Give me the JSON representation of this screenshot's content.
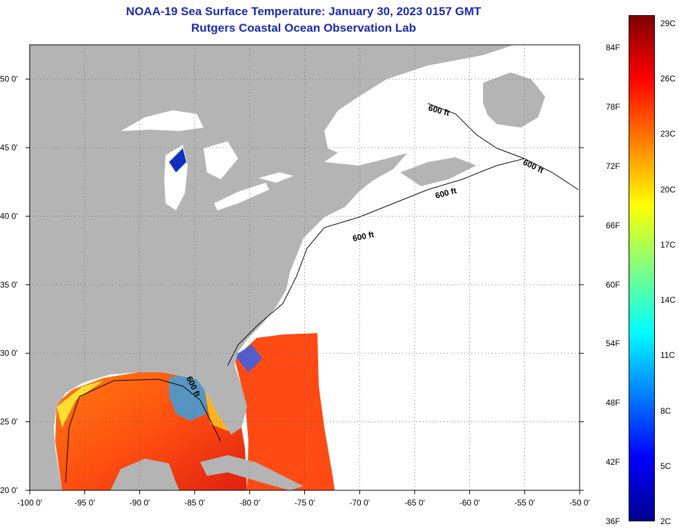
{
  "title": {
    "line1": "NOAA-19 Sea Surface Temperature:  January 30, 2023 0157 GMT",
    "line2": "Rutgers Coastal Ocean Observation Lab"
  },
  "map": {
    "lon_range": [
      -100,
      -50
    ],
    "lat_range": [
      20,
      52.5
    ],
    "grid": "dotted",
    "lon_ticks": [
      "-100 0'",
      "-95 0'",
      "-90 0'",
      "-85 0'",
      "-80 0'",
      "-75 0'",
      "-70 0'",
      "-65 0'",
      "-60 0'",
      "-55 0'",
      "-50 0'"
    ],
    "lat_ticks": [
      "20 0'",
      "25 0'",
      "30 0'",
      "35 0'",
      "40 0'",
      "45 0'",
      "50 0'"
    ],
    "contour_label": "600 ft",
    "land_color": "#b4b4b4",
    "no_data_color": "#ffffff"
  },
  "colorbar": {
    "fahrenheit_labels": [
      "36F",
      "42F",
      "48F",
      "54F",
      "60F",
      "66F",
      "72F",
      "78F",
      "84F"
    ],
    "celsius_labels": [
      "2C",
      "5C",
      "8C",
      "11C",
      "14C",
      "17C",
      "20C",
      "23C",
      "26C",
      "29C"
    ],
    "colors": [
      "#00008f",
      "#0000ff",
      "#0080ff",
      "#00ffff",
      "#80ff80",
      "#ffff00",
      "#ff8000",
      "#ff0000",
      "#800000"
    ]
  }
}
